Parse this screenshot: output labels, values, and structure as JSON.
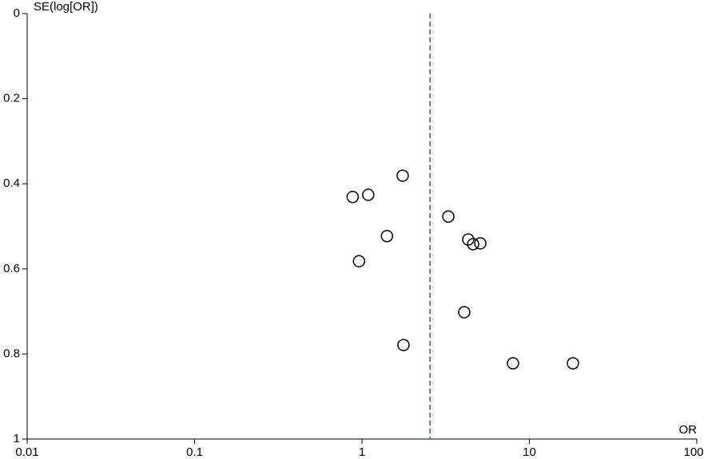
{
  "chart_data": {
    "type": "scatter",
    "y_label": "SE(log[OR])",
    "x_label": "OR",
    "x": [
      0.88,
      1.09,
      1.75,
      1.41,
      0.96,
      3.28,
      4.31,
      4.61,
      5.09,
      4.08,
      1.77,
      7.98,
      18.2
    ],
    "values": [
      0.431,
      0.426,
      0.381,
      0.523,
      0.582,
      0.477,
      0.531,
      0.542,
      0.54,
      0.702,
      0.779,
      0.822,
      0.822
    ],
    "color": "#000000",
    "xscale": "log",
    "xlim": [
      0.01,
      100
    ],
    "xticks": [
      0.01,
      0.1,
      1,
      10,
      100
    ],
    "ylim": [
      0,
      1
    ],
    "yticks": [
      0,
      0.2,
      0.4,
      0.6,
      0.8,
      1
    ],
    "y_inverted": true,
    "reference_line": 2.55,
    "reference_color": "#2a5caa",
    "grid": false
  }
}
